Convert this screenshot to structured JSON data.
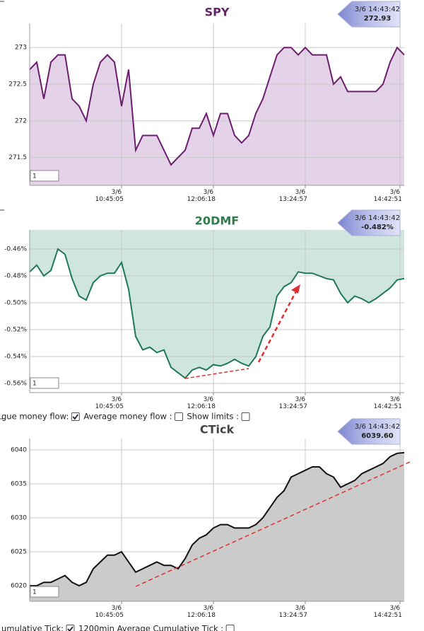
{
  "chart_data": [
    {
      "type": "area",
      "title": "SPY",
      "title_color": "#6b1d6e",
      "color": "#6b1d6e",
      "fill_color": "#e3d2e8",
      "area_fill": "below",
      "cursor_time": "3/6 14:43:42",
      "cursor_value": "272.93",
      "range_input": "1",
      "grid": true,
      "x": [
        0,
        1,
        2,
        3,
        4,
        5,
        6,
        7,
        8,
        9,
        10,
        11,
        12,
        13,
        14,
        15,
        16,
        17,
        18,
        19,
        20,
        21,
        22,
        23,
        24,
        25,
        26,
        27,
        28,
        29,
        30,
        31,
        32,
        33,
        34,
        35,
        36,
        37,
        38,
        39,
        40,
        41,
        42,
        43,
        44,
        45,
        46,
        47,
        48,
        49,
        50,
        51,
        52,
        53
      ],
      "values": [
        272.7,
        272.8,
        272.3,
        272.8,
        272.9,
        272.9,
        272.3,
        272.2,
        272.0,
        272.5,
        272.8,
        272.9,
        272.8,
        272.2,
        272.7,
        271.6,
        271.8,
        271.8,
        271.8,
        271.6,
        271.4,
        271.5,
        271.6,
        271.9,
        271.9,
        272.1,
        271.8,
        272.1,
        272.1,
        271.8,
        271.7,
        271.8,
        272.1,
        272.3,
        272.6,
        272.9,
        273.0,
        273.0,
        272.9,
        273.0,
        272.9,
        272.9,
        272.9,
        272.5,
        272.6,
        272.4,
        272.4,
        272.4,
        272.4,
        272.4,
        272.5,
        272.8,
        273.0,
        272.9
      ],
      "xlim": [
        0,
        53
      ],
      "ylim": [
        271.12,
        273.33
      ],
      "xticks": [
        {
          "value": 13,
          "label": "3/6 10:45:05"
        },
        {
          "value": 26,
          "label": "3/6 12:06:18"
        },
        {
          "value": 39,
          "label": "3/6 13:24:57"
        },
        {
          "value": 52.4,
          "label": "3/6 14:42:51"
        }
      ],
      "yticks": [
        271.5,
        272,
        272.5,
        273
      ]
    },
    {
      "type": "area",
      "title": "20DMF",
      "title_color": "#2e7d4a",
      "color": "#1d7a55",
      "fill_color": "#cfe6de",
      "area_fill": "above",
      "cursor_time": "3/6 14:43:42",
      "cursor_value": "-0.482%",
      "range_input": "1",
      "grid": true,
      "x": [
        0,
        1,
        2,
        3,
        4,
        5,
        6,
        7,
        8,
        9,
        10,
        11,
        12,
        13,
        14,
        15,
        16,
        17,
        18,
        19,
        20,
        21,
        22,
        23,
        24,
        25,
        26,
        27,
        28,
        29,
        30,
        31,
        32,
        33,
        34,
        35,
        36,
        37,
        38,
        39,
        40,
        41,
        42,
        43,
        44,
        45,
        46,
        47,
        48,
        49,
        50,
        51,
        52,
        53
      ],
      "values": [
        -0.477,
        -0.472,
        -0.48,
        -0.476,
        -0.46,
        -0.464,
        -0.482,
        -0.495,
        -0.498,
        -0.485,
        -0.48,
        -0.478,
        -0.478,
        -0.47,
        -0.49,
        -0.525,
        -0.535,
        -0.533,
        -0.537,
        -0.535,
        -0.548,
        -0.552,
        -0.556,
        -0.55,
        -0.548,
        -0.55,
        -0.546,
        -0.547,
        -0.545,
        -0.542,
        -0.545,
        -0.547,
        -0.54,
        -0.525,
        -0.518,
        -0.495,
        -0.488,
        -0.485,
        -0.477,
        -0.478,
        -0.478,
        -0.48,
        -0.482,
        -0.483,
        -0.493,
        -0.5,
        -0.495,
        -0.497,
        -0.5,
        -0.497,
        -0.493,
        -0.489,
        -0.483,
        -0.482
      ],
      "xlim": [
        0,
        53
      ],
      "ylim": [
        -0.5668,
        -0.4458
      ],
      "xticks": [
        {
          "value": 13,
          "label": "3/6 10:45:05"
        },
        {
          "value": 26,
          "label": "3/6 12:06:18"
        },
        {
          "value": 39,
          "label": "3/6 13:24:57"
        },
        {
          "value": 52.4,
          "label": "3/6 14:42:51"
        }
      ],
      "yticks": [
        {
          "value": -0.46,
          "label": "-0.46%"
        },
        {
          "value": -0.48,
          "label": "-0.48%"
        },
        {
          "value": -0.5,
          "label": "-0.50%"
        },
        {
          "value": -0.52,
          "label": "-0.52%"
        },
        {
          "value": -0.54,
          "label": "-0.54%"
        },
        {
          "value": -0.56,
          "label": "-0.56%"
        }
      ]
    },
    {
      "type": "area",
      "title": "CTick",
      "title_color": "#444444",
      "color": "#111111",
      "fill_color": "#cbcbcb",
      "area_fill": "below",
      "cursor_time": "3/6 14:43:42",
      "cursor_value": "6039.60",
      "range_input": "1",
      "grid": true,
      "x": [
        0,
        1,
        2,
        3,
        4,
        5,
        6,
        7,
        8,
        9,
        10,
        11,
        12,
        13,
        14,
        15,
        16,
        17,
        18,
        19,
        20,
        21,
        22,
        23,
        24,
        25,
        26,
        27,
        28,
        29,
        30,
        31,
        32,
        33,
        34,
        35,
        36,
        37,
        38,
        39,
        40,
        41,
        42,
        43,
        44,
        45,
        46,
        47,
        48,
        49,
        50,
        51,
        52,
        53
      ],
      "values": [
        6020,
        6020,
        6020.5,
        6020.5,
        6021,
        6021.5,
        6020.5,
        6020,
        6020.5,
        6022.5,
        6023.5,
        6024.5,
        6024.5,
        6025,
        6023.5,
        6022,
        6022.5,
        6023,
        6023.5,
        6023,
        6023,
        6022.5,
        6024,
        6026,
        6027,
        6027.5,
        6028.5,
        6029,
        6029,
        6028.5,
        6028.5,
        6028.5,
        6029,
        6030,
        6031.5,
        6033,
        6034,
        6036,
        6036.5,
        6037,
        6037.5,
        6037.5,
        6036.5,
        6036,
        6034.5,
        6035,
        6035.5,
        6036.5,
        6037,
        6037.5,
        6038,
        6039,
        6039.5,
        6039.6
      ],
      "xlim": [
        0,
        53
      ],
      "ylim": [
        6017.71,
        6041.67
      ],
      "xticks": [
        {
          "value": 13,
          "label": "3/6 10:45:05"
        },
        {
          "value": 26,
          "label": "3/6 12:06:18"
        },
        {
          "value": 39,
          "label": "3/6 13:24:57"
        },
        {
          "value": 52.4,
          "label": "3/6 14:42:51"
        }
      ],
      "yticks": [
        6020,
        6025,
        6030,
        6035,
        6040
      ]
    }
  ],
  "controls": [
    [
      {
        "label": "gue money flow:",
        "checked": true
      },
      {
        "label": "Average money flow :",
        "checked": false
      },
      {
        "label": "Show limits :",
        "checked": false
      }
    ],
    [
      {
        "label": "umulative Tick:",
        "checked": true
      },
      {
        "label": "1200min Average Cumulative Tick :",
        "checked": false
      }
    ]
  ]
}
